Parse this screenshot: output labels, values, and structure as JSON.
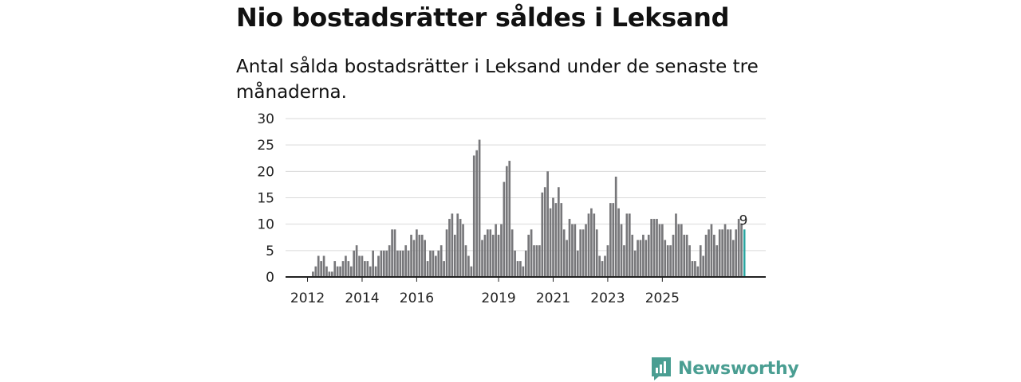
{
  "header": {
    "title": "Nio bostadsrätter såldes i Leksand",
    "subtitle": "Antal sålda bostadsrätter i Leksand under de senaste tre månaderna."
  },
  "brand": {
    "name": "Newsworthy",
    "icon": "newsworthy-logo-icon",
    "color": "#4a9e92"
  },
  "colors": {
    "bar": "#77777a",
    "highlight": "#2aa5a0",
    "grid": "#d9d9d9",
    "axis": "#222222"
  },
  "chart_data": {
    "type": "bar",
    "title": "Nio bostadsrätter såldes i Leksand",
    "subtitle": "Antal sålda bostadsrätter i Leksand under de senaste tre månaderna.",
    "xlabel": "",
    "ylabel": "",
    "ylim": [
      0,
      30
    ],
    "yticks": [
      0,
      5,
      10,
      15,
      20,
      25,
      30
    ],
    "xticks": [
      {
        "label": "2012",
        "index": 6
      },
      {
        "label": "2014",
        "index": 26
      },
      {
        "label": "2016",
        "index": 46
      },
      {
        "label": "2019",
        "index": 76
      },
      {
        "label": "2021",
        "index": 96
      },
      {
        "label": "2023",
        "index": 116
      },
      {
        "label": "2025",
        "index": 136
      }
    ],
    "grid": true,
    "highlight_last": true,
    "last_label": "9",
    "values": [
      0,
      0,
      0,
      0,
      0,
      0,
      0,
      0,
      1,
      2,
      4,
      3,
      4,
      2,
      1,
      1,
      3,
      2,
      2,
      3,
      4,
      3,
      2,
      5,
      6,
      4,
      4,
      3,
      3,
      2,
      5,
      2,
      4,
      5,
      5,
      5,
      6,
      9,
      9,
      5,
      5,
      5,
      6,
      5,
      8,
      7,
      9,
      8,
      8,
      7,
      3,
      5,
      5,
      4,
      5,
      6,
      3,
      9,
      11,
      12,
      8,
      12,
      11,
      10,
      6,
      4,
      2,
      23,
      24,
      26,
      7,
      8,
      9,
      9,
      8,
      10,
      8,
      10,
      18,
      21,
      22,
      9,
      5,
      3,
      3,
      2,
      5,
      8,
      9,
      6,
      6,
      6,
      16,
      17,
      20,
      13,
      15,
      14,
      17,
      14,
      9,
      7,
      11,
      10,
      10,
      5,
      9,
      9,
      10,
      12,
      13,
      12,
      9,
      4,
      3,
      4,
      6,
      14,
      14,
      19,
      13,
      10,
      6,
      12,
      12,
      8,
      5,
      7,
      7,
      8,
      7,
      8,
      11,
      11,
      11,
      10,
      10,
      7,
      6,
      6,
      8,
      12,
      10,
      10,
      8,
      8,
      6,
      3,
      3,
      2,
      6,
      4,
      8,
      9,
      10,
      8,
      6,
      9,
      9,
      10,
      9,
      9,
      7,
      9,
      11,
      10,
      9
    ]
  }
}
